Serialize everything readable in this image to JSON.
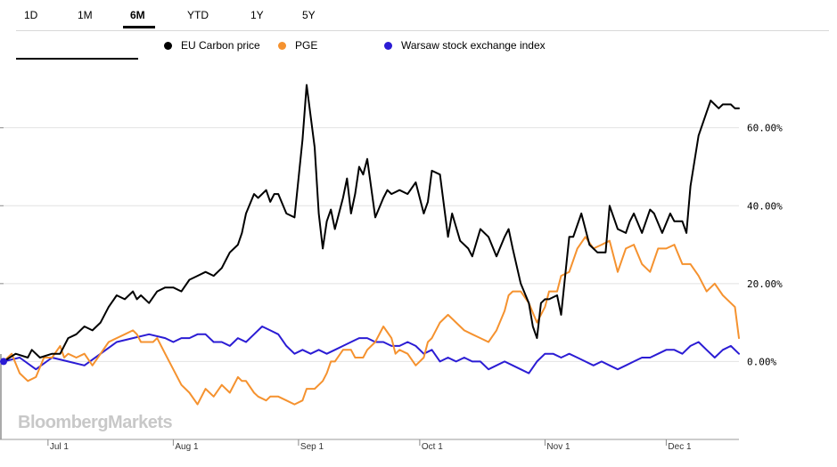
{
  "tabs": [
    {
      "label": "1D",
      "active": false
    },
    {
      "label": "1M",
      "active": false
    },
    {
      "label": "6M",
      "active": true
    },
    {
      "label": "YTD",
      "active": false
    },
    {
      "label": "1Y",
      "active": false
    },
    {
      "label": "5Y",
      "active": false
    }
  ],
  "brand": "BloombergMarkets",
  "chart_data": {
    "type": "line",
    "title": "",
    "xlabel": "",
    "ylabel": "",
    "ylim": [
      -20,
      75
    ],
    "yticks": [
      {
        "value": 0,
        "label": "0.00%"
      },
      {
        "value": 20,
        "label": "20.00%"
      },
      {
        "value": 40,
        "label": "40.00%"
      },
      {
        "value": 60,
        "label": "60.00%"
      }
    ],
    "xlim": [
      0,
      182
    ],
    "xticks": [
      {
        "value": 11,
        "label": "Jul 1"
      },
      {
        "value": 42,
        "label": "Aug 1"
      },
      {
        "value": 73,
        "label": "Sep 1"
      },
      {
        "value": 103,
        "label": "Oct 1"
      },
      {
        "value": 134,
        "label": "Nov 1"
      },
      {
        "value": 164,
        "label": "Dec 1"
      }
    ],
    "grid": true,
    "legend_position": "top",
    "series": [
      {
        "name": "EU Carbon price",
        "color": "#000000",
        "x": [
          0,
          3,
          6,
          7,
          9,
          12,
          14,
          16,
          18,
          20,
          22,
          24,
          26,
          28,
          30,
          32,
          33,
          34,
          36,
          38,
          40,
          42,
          44,
          46,
          48,
          50,
          52,
          54,
          56,
          58,
          59,
          60,
          62,
          63,
          65,
          66,
          67,
          68,
          70,
          72,
          74,
          75,
          77,
          78,
          79,
          80,
          81,
          82,
          84,
          85,
          86,
          87,
          88,
          89,
          90,
          92,
          94,
          95,
          96,
          98,
          100,
          102,
          104,
          105,
          106,
          108,
          110,
          111,
          113,
          115,
          116,
          118,
          120,
          122,
          124,
          125,
          126,
          128,
          130,
          131,
          132,
          133,
          134,
          135,
          137,
          138,
          140,
          141,
          143,
          145,
          147,
          149,
          150,
          152,
          154,
          155,
          156,
          158,
          160,
          161,
          163,
          165,
          166,
          168,
          169,
          170,
          172,
          174,
          175,
          177,
          178,
          180,
          181,
          182
        ],
        "values": [
          0,
          2,
          1,
          3,
          1,
          2,
          2,
          6,
          7,
          9,
          8,
          10,
          14,
          17,
          16,
          18,
          16,
          17,
          15,
          18,
          19,
          19,
          18,
          21,
          22,
          23,
          22,
          24,
          28,
          30,
          33,
          38,
          43,
          42,
          44,
          41,
          43,
          43,
          38,
          37,
          57,
          71,
          55,
          38,
          29,
          36,
          39,
          34,
          42,
          47,
          38,
          43,
          50,
          48,
          52,
          37,
          42,
          44,
          43,
          44,
          43,
          46,
          38,
          41,
          49,
          48,
          32,
          38,
          31,
          29,
          27,
          34,
          32,
          27,
          32,
          34,
          29,
          20,
          15,
          9,
          6,
          15,
          16,
          16,
          17,
          12,
          32,
          32,
          38,
          30,
          28,
          28,
          40,
          34,
          33,
          36,
          38,
          33,
          39,
          38,
          33,
          38,
          36,
          36,
          33,
          45,
          58,
          64,
          67,
          65,
          66,
          66,
          65,
          65
        ]
      },
      {
        "name": "PGE",
        "color": "#f5922f",
        "x": [
          0,
          2,
          4,
          6,
          8,
          10,
          12,
          14,
          15,
          16,
          18,
          20,
          22,
          24,
          26,
          28,
          30,
          32,
          33,
          34,
          36,
          37,
          38,
          40,
          42,
          44,
          46,
          48,
          50,
          52,
          54,
          56,
          58,
          59,
          60,
          62,
          63,
          65,
          66,
          68,
          70,
          72,
          74,
          75,
          77,
          78,
          79,
          80,
          81,
          82,
          84,
          85,
          86,
          87,
          88,
          89,
          90,
          92,
          94,
          96,
          97,
          98,
          100,
          102,
          104,
          105,
          106,
          108,
          110,
          112,
          114,
          116,
          118,
          120,
          122,
          124,
          125,
          126,
          128,
          130,
          132,
          134,
          135,
          137,
          138,
          140,
          142,
          144,
          146,
          148,
          150,
          152,
          154,
          156,
          158,
          160,
          162,
          164,
          166,
          168,
          170,
          172,
          174,
          176,
          178,
          180,
          181,
          182
        ],
        "values": [
          0,
          2,
          -3,
          -5,
          -4,
          1,
          1,
          4,
          1,
          2,
          1,
          2,
          -1,
          2,
          5,
          6,
          7,
          8,
          7,
          5,
          5,
          5,
          6,
          2,
          -2,
          -6,
          -8,
          -11,
          -7,
          -9,
          -6,
          -8,
          -4,
          -5,
          -5,
          -8,
          -9,
          -10,
          -9,
          -9,
          -10,
          -11,
          -10,
          -7,
          -7,
          -6,
          -5,
          -3,
          0,
          0,
          3,
          3,
          3,
          1,
          1,
          1,
          3,
          5,
          9,
          6,
          2,
          3,
          2,
          -1,
          1,
          5,
          6,
          10,
          12,
          10,
          8,
          7,
          6,
          5,
          8,
          13,
          17,
          18,
          18,
          15,
          10,
          14,
          18,
          18,
          22,
          23,
          29,
          32,
          29,
          30,
          31,
          23,
          29,
          30,
          25,
          23,
          29,
          29,
          30,
          25,
          25,
          22,
          18,
          20,
          17,
          15,
          14,
          6
        ]
      },
      {
        "name": "Warsaw stock exchange index",
        "color": "#2b1cd4",
        "x": [
          0,
          4,
          8,
          12,
          16,
          20,
          24,
          28,
          32,
          36,
          40,
          42,
          44,
          46,
          48,
          50,
          52,
          54,
          56,
          58,
          60,
          62,
          64,
          66,
          68,
          70,
          72,
          74,
          76,
          78,
          80,
          82,
          84,
          86,
          88,
          90,
          92,
          94,
          96,
          98,
          100,
          102,
          104,
          106,
          108,
          110,
          112,
          114,
          116,
          118,
          120,
          122,
          124,
          126,
          128,
          130,
          132,
          134,
          136,
          138,
          140,
          142,
          144,
          146,
          148,
          150,
          152,
          154,
          156,
          158,
          160,
          162,
          164,
          166,
          168,
          170,
          172,
          174,
          176,
          178,
          180,
          182
        ],
        "values": [
          0,
          1,
          -2,
          1,
          0,
          -1,
          2,
          5,
          6,
          7,
          6,
          5,
          6,
          6,
          7,
          7,
          5,
          5,
          4,
          6,
          5,
          7,
          9,
          8,
          7,
          4,
          2,
          3,
          2,
          3,
          2,
          3,
          4,
          5,
          6,
          6,
          5,
          5,
          4,
          4,
          5,
          4,
          2,
          3,
          0,
          1,
          0,
          1,
          0,
          0,
          -2,
          -1,
          0,
          -1,
          -2,
          -3,
          0,
          2,
          2,
          1,
          2,
          1,
          0,
          -1,
          0,
          -1,
          -2,
          -1,
          0,
          1,
          1,
          2,
          3,
          3,
          2,
          4,
          5,
          3,
          1,
          3,
          4,
          2
        ]
      }
    ]
  }
}
